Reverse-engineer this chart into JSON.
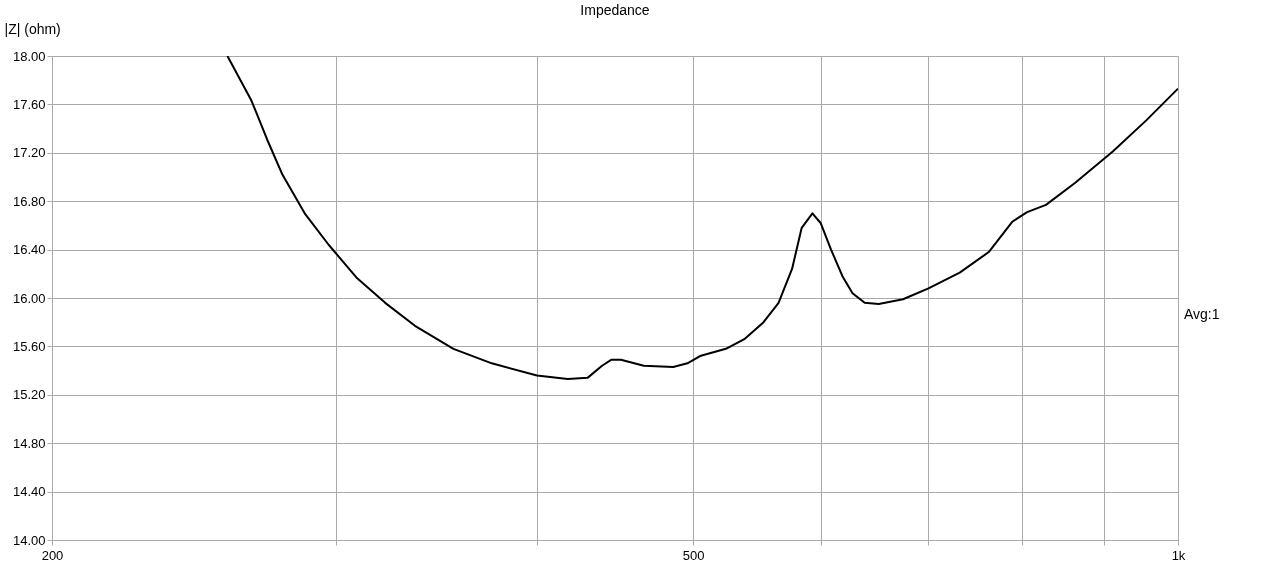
{
  "chart_data": {
    "type": "line",
    "title": "Impedance",
    "ylabel": "|Z| (ohm)",
    "annotations": [
      "Avg:1"
    ],
    "log": "x",
    "grid": true,
    "marker": "none",
    "line_style": "solid",
    "xlim": [
      200,
      1000
    ],
    "xticks": [
      200,
      {
        "value": 300,
        "label": null
      },
      {
        "value": 400,
        "label": null
      },
      500,
      {
        "value": 600,
        "label": null
      },
      {
        "value": 700,
        "label": null
      },
      {
        "value": 800,
        "label": null
      },
      {
        "value": 900,
        "label": null
      },
      {
        "value": 1000,
        "label": "1k"
      }
    ],
    "ylim": [
      14,
      18
    ],
    "yticks": [
      {
        "value": 14,
        "label": "14.00"
      },
      {
        "value": 14.4,
        "label": "14.40"
      },
      {
        "value": 14.8,
        "label": "14.80"
      },
      {
        "value": 15.2,
        "label": "15.20"
      },
      {
        "value": 15.6,
        "label": "15.60"
      },
      {
        "value": 16,
        "label": "16.00"
      },
      {
        "value": 16.4,
        "label": "16.40"
      },
      {
        "value": 16.8,
        "label": "16.80"
      },
      {
        "value": 17.2,
        "label": "17.20"
      },
      {
        "value": 17.6,
        "label": "17.60"
      },
      {
        "value": 18,
        "label": "18.00"
      }
    ],
    "series": [
      {
        "color": "#000000",
        "x": [
          257,
          266,
          272,
          278,
          287,
          297,
          309,
          322,
          336,
          355,
          375,
          400,
          418,
          430,
          439,
          445,
          451,
          466,
          486,
          496,
          505,
          524,
          538,
          553,
          565,
          576,
          584,
          593,
          600,
          609,
          619,
          628,
          639,
          652,
          675,
          700,
          732,
          763,
          789,
          806,
          828,
          863,
          911,
          956,
          1000
        ],
        "values": [
          18.0,
          17.63,
          17.31,
          17.02,
          16.7,
          16.44,
          16.17,
          15.96,
          15.77,
          15.58,
          15.46,
          15.36,
          15.33,
          15.34,
          15.44,
          15.49,
          15.49,
          15.44,
          15.43,
          15.46,
          15.52,
          15.58,
          15.66,
          15.8,
          15.96,
          16.24,
          16.58,
          16.7,
          16.62,
          16.4,
          16.18,
          16.04,
          15.96,
          15.95,
          15.99,
          16.08,
          16.21,
          16.38,
          16.63,
          16.71,
          16.77,
          16.95,
          17.21,
          17.47,
          17.73
        ]
      }
    ]
  }
}
